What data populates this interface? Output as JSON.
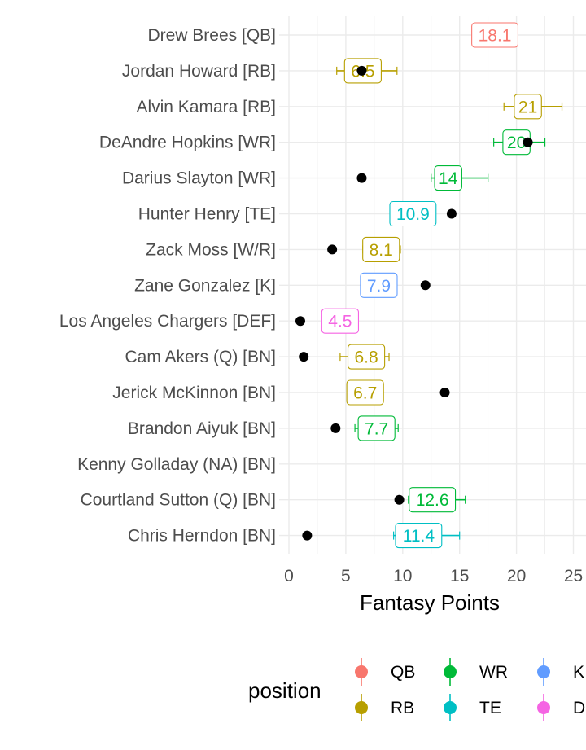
{
  "chart_data": {
    "type": "scatter",
    "xlabel": "Fantasy Points",
    "xlim": [
      0,
      25
    ],
    "xticks": [
      "0",
      "5",
      "10",
      "15",
      "20",
      "25"
    ],
    "grid": true,
    "legend": {
      "title": "position",
      "placement": "bottom",
      "entries": [
        {
          "key": "QB",
          "label": "QB",
          "color": "#F8766D"
        },
        {
          "key": "RB",
          "label": "RB",
          "color": "#B79F00"
        },
        {
          "key": "WR",
          "label": "WR",
          "color": "#00BA38"
        },
        {
          "key": "TE",
          "label": "TE",
          "color": "#00BFC4"
        },
        {
          "key": "K",
          "label": "K",
          "color": "#619CFF"
        },
        {
          "key": "DEF",
          "label": "DEF",
          "color": "#F564E3"
        }
      ]
    },
    "rows": [
      {
        "player": "Drew Brees [QB]",
        "position": "QB",
        "projection": 18.1,
        "projection_label": "18.1",
        "low": null,
        "high": null,
        "actual": null
      },
      {
        "player": "Jordan Howard [RB]",
        "position": "RB",
        "projection": 6.5,
        "projection_label": "6.5",
        "low": 4.2,
        "high": 9.5,
        "actual": 6.4
      },
      {
        "player": "Alvin Kamara [RB]",
        "position": "RB",
        "projection": 21,
        "projection_label": "21",
        "low": 18.9,
        "high": 24.0,
        "actual": null
      },
      {
        "player": "DeAndre Hopkins [WR]",
        "position": "WR",
        "projection": 20,
        "projection_label": "20",
        "low": 18.0,
        "high": 22.5,
        "actual": 21.0
      },
      {
        "player": "Darius Slayton [WR]",
        "position": "WR",
        "projection": 14,
        "projection_label": "14",
        "low": 12.5,
        "high": 17.5,
        "actual": 6.4
      },
      {
        "player": "Hunter Henry [TE]",
        "position": "TE",
        "projection": 10.9,
        "projection_label": "10.9",
        "low": 9.0,
        "high": 12.8,
        "actual": 14.3
      },
      {
        "player": "Zack Moss [W/R]",
        "position": "RB",
        "projection": 8.1,
        "projection_label": "8.1",
        "low": 6.5,
        "high": 9.8,
        "actual": 3.8
      },
      {
        "player": "Zane Gonzalez [K]",
        "position": "K",
        "projection": 7.9,
        "projection_label": "7.9",
        "low": null,
        "high": null,
        "actual": 12.0
      },
      {
        "player": "Los Angeles Chargers [DEF]",
        "position": "DEF",
        "projection": 4.5,
        "projection_label": "4.5",
        "low": null,
        "high": null,
        "actual": 1.0
      },
      {
        "player": "Cam Akers (Q) [BN]",
        "position": "RB",
        "projection": 6.8,
        "projection_label": "6.8",
        "low": 4.5,
        "high": 8.8,
        "actual": 1.3
      },
      {
        "player": "Jerick McKinnon [BN]",
        "position": "RB",
        "projection": 6.7,
        "projection_label": "6.7",
        "low": null,
        "high": null,
        "actual": 13.7
      },
      {
        "player": "Brandon Aiyuk [BN]",
        "position": "WR",
        "projection": 7.7,
        "projection_label": "7.7",
        "low": 5.8,
        "high": 9.6,
        "actual": 4.1
      },
      {
        "player": "Kenny Golladay (NA) [BN]",
        "position": null,
        "projection": null,
        "projection_label": "",
        "low": null,
        "high": null,
        "actual": null
      },
      {
        "player": "Courtland Sutton (Q) [BN]",
        "position": "WR",
        "projection": 12.6,
        "projection_label": "12.6",
        "low": 10.5,
        "high": 15.5,
        "actual": 9.7
      },
      {
        "player": "Chris Herndon [BN]",
        "position": "TE",
        "projection": 11.4,
        "projection_label": "11.4",
        "low": 9.2,
        "high": 15.0,
        "actual": 1.6
      }
    ]
  }
}
